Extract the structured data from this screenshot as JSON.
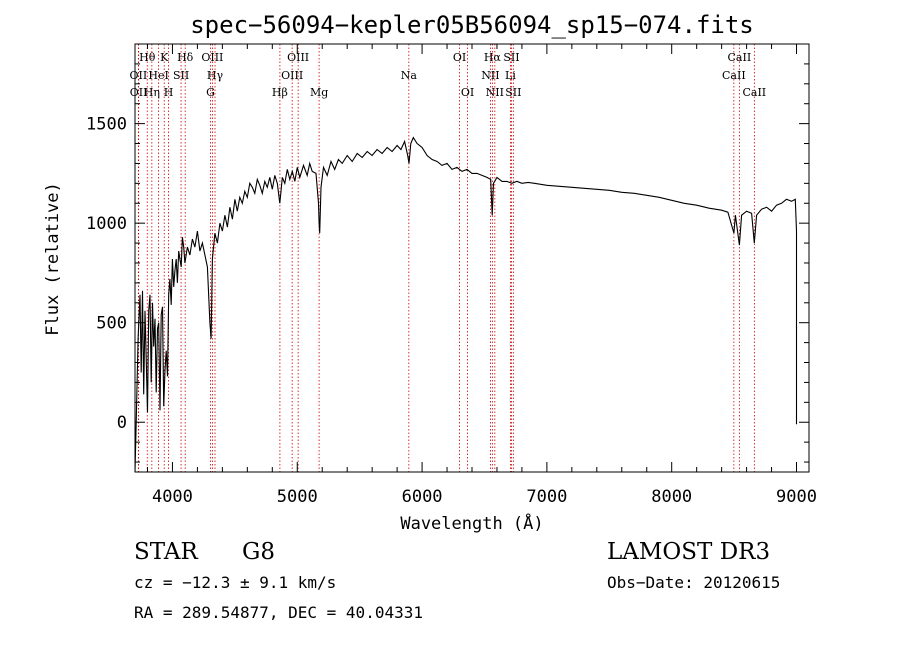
{
  "chart_data": {
    "type": "line",
    "title": "spec−56094−kepler05B56094_sp15−074.fits",
    "xlabel": "Wavelength (Å)",
    "ylabel": "Flux (relative)",
    "xlim": [
      3700,
      9100
    ],
    "ylim": [
      -250,
      1900
    ],
    "xticks": [
      4000,
      5000,
      6000,
      7000,
      8000,
      9000
    ],
    "yticks": [
      0,
      500,
      1000,
      1500
    ],
    "colors": {
      "spectrum": "#000000",
      "lines": "#cc0000",
      "axes": "#000000"
    },
    "series": [
      {
        "name": "flux",
        "points": [
          [
            3700,
            -250
          ],
          [
            3710,
            0
          ],
          [
            3725,
            420
          ],
          [
            3740,
            640
          ],
          [
            3750,
            250
          ],
          [
            3760,
            660
          ],
          [
            3770,
            140
          ],
          [
            3780,
            560
          ],
          [
            3790,
            320
          ],
          [
            3800,
            50
          ],
          [
            3810,
            560
          ],
          [
            3820,
            640
          ],
          [
            3830,
            200
          ],
          [
            3840,
            600
          ],
          [
            3850,
            380
          ],
          [
            3860,
            520
          ],
          [
            3870,
            150
          ],
          [
            3880,
            470
          ],
          [
            3890,
            500
          ],
          [
            3900,
            60
          ],
          [
            3910,
            540
          ],
          [
            3920,
            580
          ],
          [
            3930,
            80
          ],
          [
            3940,
            260
          ],
          [
            3950,
            360
          ],
          [
            3960,
            230
          ],
          [
            3970,
            640
          ],
          [
            3980,
            720
          ],
          [
            3990,
            590
          ],
          [
            4000,
            820
          ],
          [
            4010,
            680
          ],
          [
            4020,
            760
          ],
          [
            4030,
            820
          ],
          [
            4040,
            700
          ],
          [
            4050,
            860
          ],
          [
            4060,
            820
          ],
          [
            4070,
            780
          ],
          [
            4080,
            930
          ],
          [
            4090,
            880
          ],
          [
            4100,
            800
          ],
          [
            4120,
            880
          ],
          [
            4140,
            840
          ],
          [
            4160,
            920
          ],
          [
            4180,
            880
          ],
          [
            4200,
            960
          ],
          [
            4220,
            860
          ],
          [
            4240,
            900
          ],
          [
            4260,
            840
          ],
          [
            4280,
            780
          ],
          [
            4300,
            500
          ],
          [
            4310,
            420
          ],
          [
            4320,
            820
          ],
          [
            4340,
            950
          ],
          [
            4360,
            900
          ],
          [
            4380,
            1000
          ],
          [
            4400,
            960
          ],
          [
            4420,
            1040
          ],
          [
            4440,
            980
          ],
          [
            4460,
            1080
          ],
          [
            4480,
            1020
          ],
          [
            4500,
            1120
          ],
          [
            4520,
            1060
          ],
          [
            4540,
            1130
          ],
          [
            4560,
            1100
          ],
          [
            4580,
            1160
          ],
          [
            4600,
            1130
          ],
          [
            4620,
            1200
          ],
          [
            4640,
            1180
          ],
          [
            4660,
            1150
          ],
          [
            4680,
            1220
          ],
          [
            4700,
            1190
          ],
          [
            4720,
            1150
          ],
          [
            4740,
            1210
          ],
          [
            4760,
            1180
          ],
          [
            4780,
            1230
          ],
          [
            4800,
            1170
          ],
          [
            4820,
            1240
          ],
          [
            4840,
            1200
          ],
          [
            4860,
            1100
          ],
          [
            4870,
            1160
          ],
          [
            4880,
            1230
          ],
          [
            4900,
            1200
          ],
          [
            4920,
            1270
          ],
          [
            4940,
            1220
          ],
          [
            4960,
            1260
          ],
          [
            4980,
            1210
          ],
          [
            5000,
            1280
          ],
          [
            5020,
            1230
          ],
          [
            5050,
            1290
          ],
          [
            5080,
            1240
          ],
          [
            5100,
            1300
          ],
          [
            5120,
            1260
          ],
          [
            5150,
            1250
          ],
          [
            5170,
            1100
          ],
          [
            5175,
            1000
          ],
          [
            5180,
            950
          ],
          [
            5190,
            1180
          ],
          [
            5210,
            1280
          ],
          [
            5240,
            1240
          ],
          [
            5270,
            1310
          ],
          [
            5300,
            1270
          ],
          [
            5330,
            1320
          ],
          [
            5360,
            1300
          ],
          [
            5400,
            1340
          ],
          [
            5440,
            1310
          ],
          [
            5480,
            1350
          ],
          [
            5520,
            1330
          ],
          [
            5560,
            1360
          ],
          [
            5600,
            1340
          ],
          [
            5640,
            1370
          ],
          [
            5680,
            1350
          ],
          [
            5720,
            1380
          ],
          [
            5760,
            1360
          ],
          [
            5800,
            1390
          ],
          [
            5830,
            1370
          ],
          [
            5860,
            1410
          ],
          [
            5885,
            1340
          ],
          [
            5895,
            1300
          ],
          [
            5910,
            1400
          ],
          [
            5930,
            1430
          ],
          [
            5960,
            1400
          ],
          [
            6000,
            1380
          ],
          [
            6040,
            1340
          ],
          [
            6080,
            1320
          ],
          [
            6120,
            1310
          ],
          [
            6160,
            1290
          ],
          [
            6200,
            1300
          ],
          [
            6240,
            1270
          ],
          [
            6280,
            1280
          ],
          [
            6320,
            1260
          ],
          [
            6360,
            1270
          ],
          [
            6400,
            1250
          ],
          [
            6440,
            1250
          ],
          [
            6480,
            1240
          ],
          [
            6520,
            1230
          ],
          [
            6550,
            1220
          ],
          [
            6562,
            1040
          ],
          [
            6572,
            1200
          ],
          [
            6600,
            1230
          ],
          [
            6640,
            1210
          ],
          [
            6680,
            1210
          ],
          [
            6720,
            1200
          ],
          [
            6760,
            1210
          ],
          [
            6800,
            1200
          ],
          [
            6850,
            1205
          ],
          [
            6900,
            1200
          ],
          [
            6950,
            1195
          ],
          [
            7000,
            1190
          ],
          [
            7100,
            1185
          ],
          [
            7200,
            1180
          ],
          [
            7300,
            1175
          ],
          [
            7400,
            1170
          ],
          [
            7500,
            1165
          ],
          [
            7600,
            1155
          ],
          [
            7700,
            1150
          ],
          [
            7800,
            1140
          ],
          [
            7900,
            1130
          ],
          [
            8000,
            1115
          ],
          [
            8100,
            1100
          ],
          [
            8200,
            1090
          ],
          [
            8300,
            1075
          ],
          [
            8400,
            1065
          ],
          [
            8450,
            1055
          ],
          [
            8498,
            950
          ],
          [
            8510,
            1040
          ],
          [
            8542,
            890
          ],
          [
            8560,
            1040
          ],
          [
            8600,
            1060
          ],
          [
            8640,
            1050
          ],
          [
            8662,
            900
          ],
          [
            8680,
            1040
          ],
          [
            8720,
            1070
          ],
          [
            8760,
            1080
          ],
          [
            8800,
            1060
          ],
          [
            8840,
            1090
          ],
          [
            8880,
            1100
          ],
          [
            8920,
            1120
          ],
          [
            8960,
            1110
          ],
          [
            8990,
            1120
          ],
          [
            9000,
            960
          ],
          [
            9000,
            -10
          ]
        ]
      }
    ],
    "line_markers": [
      {
        "name": "Hθ",
        "wavelength": 3798,
        "row": 0
      },
      {
        "name": "Hη",
        "wavelength": 3835,
        "row": 2
      },
      {
        "name": "OII",
        "wavelength": 3727,
        "row": 1
      },
      {
        "name": "OII",
        "wavelength": 3729,
        "row": 2
      },
      {
        "name": "HeI",
        "wavelength": 3889,
        "row": 1
      },
      {
        "name": "K",
        "wavelength": 3934,
        "row": 0
      },
      {
        "name": "H",
        "wavelength": 3969,
        "row": 2
      },
      {
        "name": "SII",
        "wavelength": 4069,
        "row": 1
      },
      {
        "name": "Hδ",
        "wavelength": 4102,
        "row": 0
      },
      {
        "name": "OIII",
        "wavelength": 4320,
        "row": 0
      },
      {
        "name": "Hγ",
        "wavelength": 4341,
        "row": 1
      },
      {
        "name": "G",
        "wavelength": 4305,
        "row": 2
      },
      {
        "name": "Hβ",
        "wavelength": 4861,
        "row": 2
      },
      {
        "name": "OIII",
        "wavelength": 4959,
        "row": 1
      },
      {
        "name": "OIII",
        "wavelength": 5007,
        "row": 0
      },
      {
        "name": "Mg",
        "wavelength": 5175,
        "row": 2
      },
      {
        "name": "Na",
        "wavelength": 5894,
        "row": 1
      },
      {
        "name": "OI",
        "wavelength": 6300,
        "row": 0
      },
      {
        "name": "OI",
        "wavelength": 6364,
        "row": 2
      },
      {
        "name": "NII",
        "wavelength": 6548,
        "row": 1
      },
      {
        "name": "Hα",
        "wavelength": 6563,
        "row": 0
      },
      {
        "name": "NII",
        "wavelength": 6583,
        "row": 2
      },
      {
        "name": "SII",
        "wavelength": 6716,
        "row": 0
      },
      {
        "name": "SII",
        "wavelength": 6731,
        "row": 2
      },
      {
        "name": "Li",
        "wavelength": 6708,
        "row": 1
      },
      {
        "name": "CaII",
        "wavelength": 8498,
        "row": 1
      },
      {
        "name": "CaII",
        "wavelength": 8542,
        "row": 0
      },
      {
        "name": "CaII",
        "wavelength": 8662,
        "row": 2
      }
    ]
  },
  "info": {
    "object_class": "STAR",
    "subclass": "G8",
    "survey": "LAMOST DR3",
    "redshift": "cz = −12.3 ± 9.1 km/s",
    "obs_date": "Obs−Date: 20120615",
    "coords": "RA = 289.54877, DEC =  40.04331"
  }
}
